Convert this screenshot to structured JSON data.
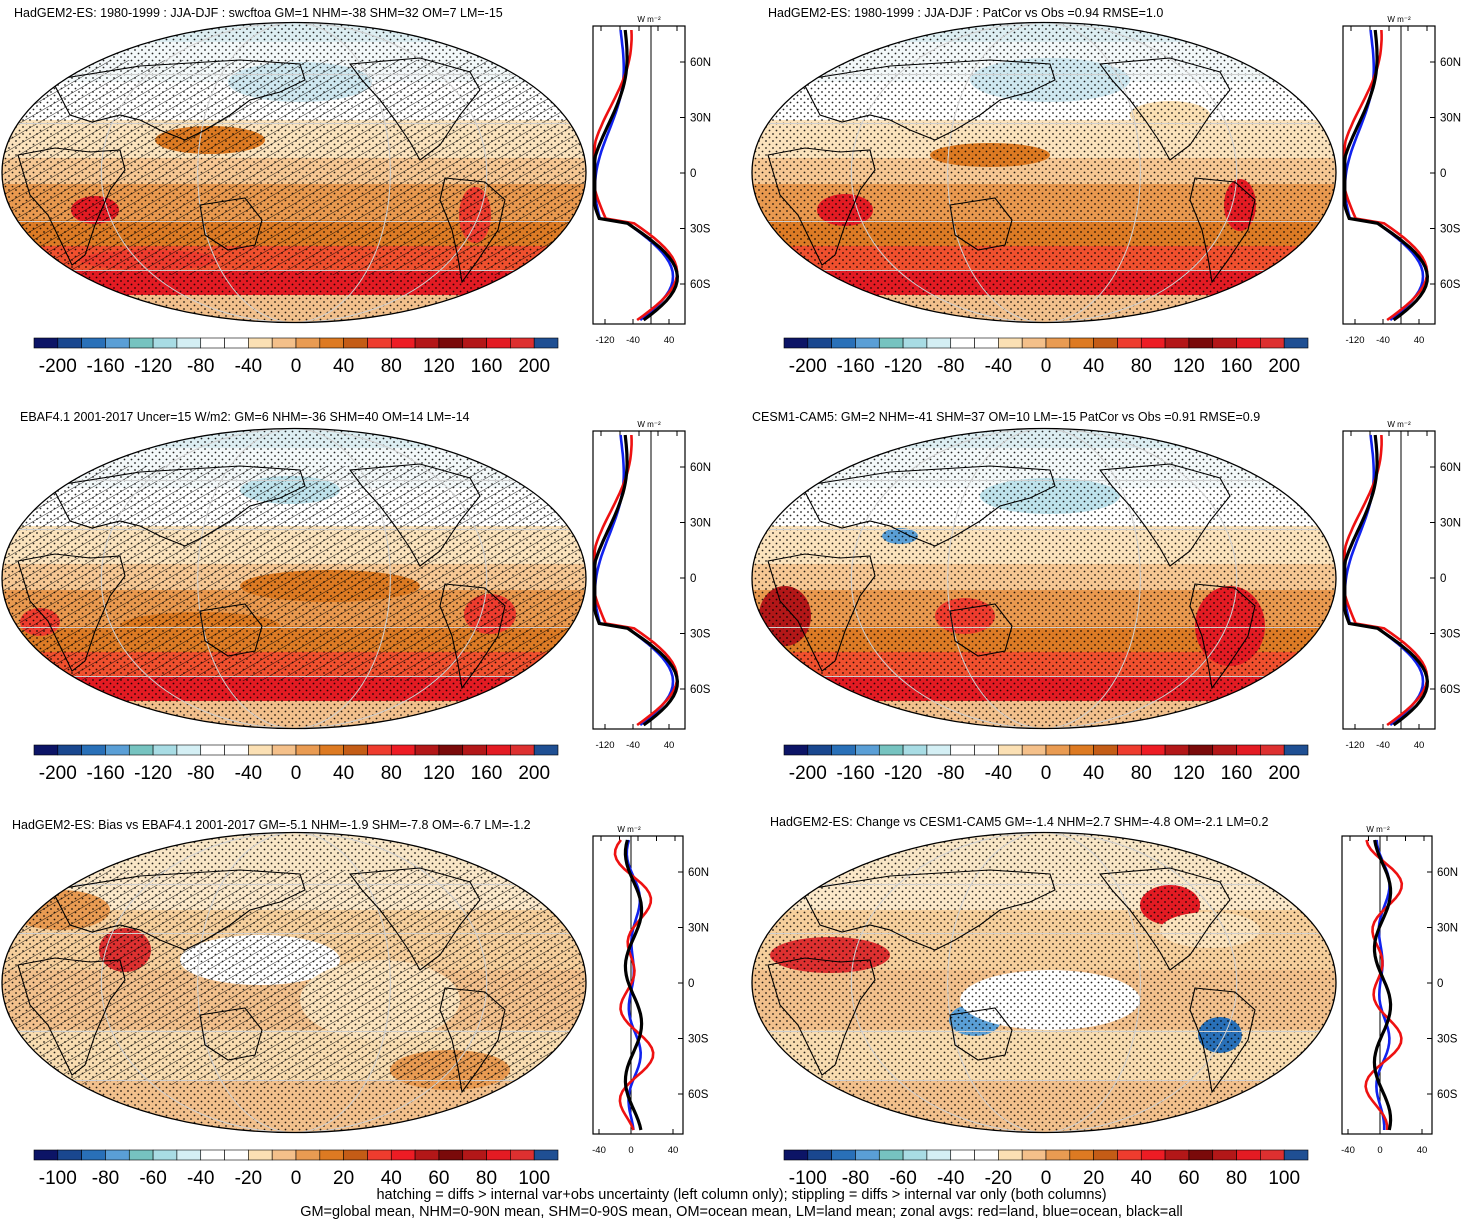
{
  "palette": [
    "#0c1466",
    "#19478f",
    "#2970b8",
    "#5a9fd6",
    "#76c3c0",
    "#a8dce4",
    "#d4eff4",
    "#ffffff",
    "#ffffff",
    "#fbe0b4",
    "#f4c08a",
    "#e99b52",
    "#dd7a22",
    "#c45c16",
    "#ee3c2e",
    "#ed1c24",
    "#b31718",
    "#7a0a0a",
    "#b31718",
    "#e31b23",
    "#dd3030",
    "#1f4f93"
  ],
  "zonal_colors": {
    "land": "#ee1111",
    "ocean": "#1122ee",
    "all": "#000000"
  },
  "lat_labels": [
    "60N",
    "30N",
    "0",
    "30S",
    "60S"
  ],
  "panels": [
    {
      "title": "HadGEM2-ES: 1980-1999 : JJA-DJF : swcftoa GM=1 NHM=-38 SHM=32 OM=7 LM=-15",
      "hatched": true,
      "cbar_labels": [
        "-200",
        "-160",
        "-120",
        "-80",
        "-40",
        "0",
        "40",
        "80",
        "120",
        "160",
        "200"
      ],
      "zonal_ticks": [
        "-120",
        "-40",
        "40"
      ],
      "units": "W m⁻²"
    },
    {
      "title": "HadGEM2-ES: 1980-1999 : JJA-DJF : PatCor vs Obs =0.94 RMSE=1.0",
      "hatched": false,
      "cbar_labels": [
        "-200",
        "-160",
        "-120",
        "-80",
        "-40",
        "0",
        "40",
        "80",
        "120",
        "160",
        "200"
      ],
      "zonal_ticks": [
        "-120",
        "-40",
        "40"
      ],
      "units": "W m⁻²"
    },
    {
      "title": "EBAF4.1 2001-2017 Uncer=15 W/m2: GM=6 NHM=-36 SHM=40 OM=14 LM=-14",
      "hatched": true,
      "cbar_labels": [
        "-200",
        "-160",
        "-120",
        "-80",
        "-40",
        "0",
        "40",
        "80",
        "120",
        "160",
        "200"
      ],
      "zonal_ticks": [
        "-120",
        "-40",
        "40"
      ],
      "units": "W m⁻²"
    },
    {
      "title": "CESM1-CAM5: GM=2 NHM=-41 SHM=37 OM=10 LM=-15 PatCor vs Obs =0.91 RMSE=0.9",
      "hatched": false,
      "cbar_labels": [
        "-200",
        "-160",
        "-120",
        "-80",
        "-40",
        "0",
        "40",
        "80",
        "120",
        "160",
        "200"
      ],
      "zonal_ticks": [
        "-120",
        "-40",
        "40"
      ],
      "units": "W m⁻²"
    },
    {
      "title": "HadGEM2-ES: Bias vs EBAF4.1 2001-2017 GM=-5.1 NHM=-1.9 SHM=-7.8 OM=-6.7 LM=-1.2",
      "hatched": true,
      "cbar_labels": [
        "-100",
        "-80",
        "-60",
        "-40",
        "-20",
        "0",
        "20",
        "40",
        "60",
        "80",
        "100"
      ],
      "zonal_ticks": [
        "-40",
        "0",
        "40"
      ],
      "units": "W m⁻²"
    },
    {
      "title": "HadGEM2-ES: Change vs CESM1-CAM5 GM=-1.4 NHM=2.7 SHM=-4.8 OM=-2.1 LM=0.2",
      "hatched": false,
      "cbar_labels": [
        "-100",
        "-80",
        "-60",
        "-40",
        "-20",
        "0",
        "20",
        "40",
        "60",
        "80",
        "100"
      ],
      "zonal_ticks": [
        "-40",
        "0",
        "40"
      ],
      "units": "W m⁻²"
    }
  ],
  "caption": [
    "hatching = diffs > internal var+obs uncertainty (left column only); stippling = diffs > internal var only (both columns)",
    "GM=global mean, NHM=0-90N mean, SHM=0-90S mean, OM=ocean mean, LM=land mean; zonal avgs: red=land, blue=ocean, black=all"
  ]
}
